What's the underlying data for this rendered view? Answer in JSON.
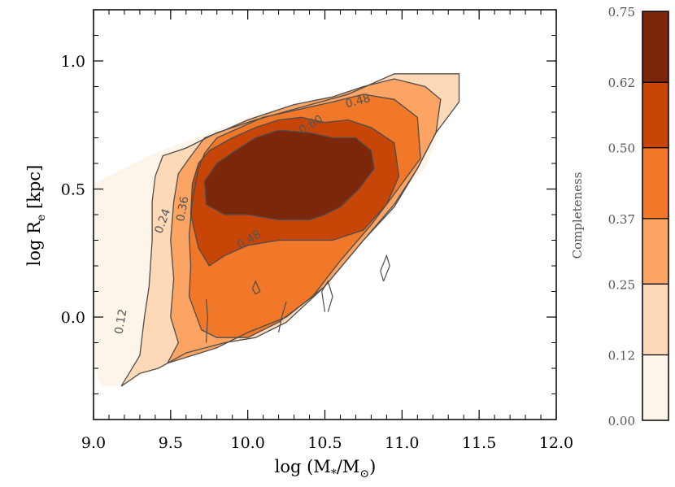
{
  "chart_data": {
    "type": "contour",
    "xlabel": "log (M*/M⊙)",
    "ylabel": "log Re [kpc]",
    "xlim": [
      9.0,
      12.0
    ],
    "ylim": [
      -0.4,
      1.2
    ],
    "xticks": [
      "9.0",
      "9.5",
      "10.0",
      "10.5",
      "11.0",
      "11.5",
      "12.0"
    ],
    "xtick_values": [
      9.0,
      9.5,
      10.0,
      10.5,
      11.0,
      11.5,
      12.0
    ],
    "yticks": [
      "0.0",
      "0.5",
      "1.0"
    ],
    "ytick_values": [
      0.0,
      0.5,
      1.0
    ],
    "colorbar": {
      "label": "Completeness",
      "range": [
        0.0,
        0.75
      ],
      "level_labels": [
        "0.00",
        "0.12",
        "0.25",
        "0.37",
        "0.50",
        "0.62",
        "0.75"
      ],
      "level_values": [
        0.0,
        0.12,
        0.25,
        0.37,
        0.5,
        0.62,
        0.75
      ],
      "colors": [
        "#fdf4ea",
        "#fdd9b8",
        "#fca463",
        "#f07828",
        "#c84508",
        "#7c2709"
      ]
    },
    "contour_labels": [
      {
        "text": "0.12",
        "x": 9.2,
        "y": -0.02,
        "angle": -80
      },
      {
        "text": "0.24",
        "x": 9.47,
        "y": 0.37,
        "angle": -70
      },
      {
        "text": "0.36",
        "x": 9.6,
        "y": 0.42,
        "angle": -80
      },
      {
        "text": "0.48",
        "x": 10.02,
        "y": 0.29,
        "angle": -30
      },
      {
        "text": "0.48",
        "x": 10.72,
        "y": 0.83,
        "angle": -15
      },
      {
        "text": "0.60",
        "x": 10.42,
        "y": 0.74,
        "angle": -30
      }
    ],
    "regions": [
      {
        "level": 0,
        "points": [
          [
            9.0,
            -0.18
          ],
          [
            9.0,
            0.52
          ],
          [
            9.4,
            0.64
          ],
          [
            9.75,
            0.72
          ],
          [
            10.05,
            0.79
          ],
          [
            10.3,
            0.82
          ],
          [
            10.6,
            0.87
          ],
          [
            10.95,
            0.95
          ],
          [
            11.37,
            0.95
          ],
          [
            11.37,
            0.84
          ],
          [
            11.25,
            0.74
          ],
          [
            11.15,
            0.58
          ],
          [
            10.95,
            0.47
          ],
          [
            10.75,
            0.32
          ],
          [
            10.55,
            0.17
          ],
          [
            10.3,
            0.02
          ],
          [
            10.0,
            -0.06
          ],
          [
            9.7,
            -0.12
          ],
          [
            9.5,
            -0.18
          ],
          [
            9.3,
            -0.23
          ],
          [
            9.15,
            -0.27
          ],
          [
            9.05,
            -0.27
          ]
        ]
      },
      {
        "level": 1,
        "points": [
          [
            9.18,
            -0.27
          ],
          [
            9.3,
            -0.22
          ],
          [
            9.42,
            -0.2
          ],
          [
            9.6,
            -0.14
          ],
          [
            9.85,
            -0.1
          ],
          [
            10.05,
            -0.08
          ],
          [
            10.25,
            -0.02
          ],
          [
            10.5,
            0.12
          ],
          [
            10.75,
            0.3
          ],
          [
            10.95,
            0.43
          ],
          [
            11.1,
            0.58
          ],
          [
            11.22,
            0.72
          ],
          [
            11.37,
            0.84
          ],
          [
            11.37,
            0.95
          ],
          [
            10.95,
            0.95
          ],
          [
            10.65,
            0.87
          ],
          [
            10.35,
            0.82
          ],
          [
            10.05,
            0.77
          ],
          [
            9.8,
            0.72
          ],
          [
            9.6,
            0.66
          ],
          [
            9.45,
            0.63
          ],
          [
            9.4,
            0.55
          ],
          [
            9.38,
            0.45
          ],
          [
            9.38,
            0.3
          ],
          [
            9.36,
            0.12
          ],
          [
            9.33,
            0.0
          ],
          [
            9.3,
            -0.15
          ]
        ]
      },
      {
        "level": 2,
        "points": [
          [
            9.48,
            -0.18
          ],
          [
            9.55,
            -0.1
          ],
          [
            9.5,
            0.0
          ],
          [
            9.52,
            0.15
          ],
          [
            9.5,
            0.3
          ],
          [
            9.52,
            0.45
          ],
          [
            9.55,
            0.56
          ],
          [
            9.62,
            0.62
          ],
          [
            9.72,
            0.7
          ],
          [
            9.85,
            0.73
          ],
          [
            10.0,
            0.77
          ],
          [
            10.15,
            0.8
          ],
          [
            10.3,
            0.83
          ],
          [
            10.55,
            0.86
          ],
          [
            10.75,
            0.9
          ],
          [
            10.95,
            0.93
          ],
          [
            11.15,
            0.9
          ],
          [
            11.25,
            0.85
          ],
          [
            11.22,
            0.72
          ],
          [
            11.1,
            0.58
          ],
          [
            10.95,
            0.44
          ],
          [
            10.75,
            0.3
          ],
          [
            10.5,
            0.12
          ],
          [
            10.25,
            0.0
          ],
          [
            10.0,
            -0.06
          ],
          [
            9.8,
            -0.12
          ]
        ]
      },
      {
        "level": 3,
        "points": [
          [
            9.7,
            -0.05
          ],
          [
            9.62,
            0.08
          ],
          [
            9.63,
            0.2
          ],
          [
            9.62,
            0.32
          ],
          [
            9.64,
            0.45
          ],
          [
            9.68,
            0.58
          ],
          [
            9.72,
            0.64
          ],
          [
            9.8,
            0.7
          ],
          [
            9.95,
            0.74
          ],
          [
            10.1,
            0.78
          ],
          [
            10.25,
            0.8
          ],
          [
            10.4,
            0.82
          ],
          [
            10.55,
            0.84
          ],
          [
            10.75,
            0.87
          ],
          [
            10.95,
            0.85
          ],
          [
            11.1,
            0.78
          ],
          [
            11.12,
            0.62
          ],
          [
            10.95,
            0.48
          ],
          [
            10.8,
            0.36
          ],
          [
            10.6,
            0.22
          ],
          [
            10.42,
            0.08
          ],
          [
            10.2,
            -0.02
          ],
          [
            10.0,
            -0.08
          ],
          [
            9.8,
            -0.08
          ]
        ]
      },
      {
        "level": 4,
        "points": [
          [
            9.68,
            0.27
          ],
          [
            9.63,
            0.4
          ],
          [
            9.64,
            0.52
          ],
          [
            9.68,
            0.6
          ],
          [
            9.75,
            0.65
          ],
          [
            9.9,
            0.7
          ],
          [
            10.05,
            0.74
          ],
          [
            10.2,
            0.77
          ],
          [
            10.35,
            0.78
          ],
          [
            10.5,
            0.76
          ],
          [
            10.65,
            0.77
          ],
          [
            10.8,
            0.74
          ],
          [
            10.95,
            0.68
          ],
          [
            10.98,
            0.55
          ],
          [
            10.9,
            0.44
          ],
          [
            10.75,
            0.34
          ],
          [
            10.55,
            0.3
          ],
          [
            10.4,
            0.3
          ],
          [
            10.2,
            0.3
          ],
          [
            10.0,
            0.28
          ],
          [
            9.85,
            0.24
          ],
          [
            9.75,
            0.2
          ]
        ]
      },
      {
        "level": 5,
        "points": [
          [
            9.73,
            0.44
          ],
          [
            9.72,
            0.53
          ],
          [
            9.8,
            0.6
          ],
          [
            9.92,
            0.65
          ],
          [
            10.05,
            0.7
          ],
          [
            10.2,
            0.73
          ],
          [
            10.4,
            0.72
          ],
          [
            10.55,
            0.7
          ],
          [
            10.7,
            0.7
          ],
          [
            10.8,
            0.65
          ],
          [
            10.82,
            0.58
          ],
          [
            10.72,
            0.5
          ],
          [
            10.6,
            0.43
          ],
          [
            10.5,
            0.4
          ],
          [
            10.4,
            0.38
          ],
          [
            10.2,
            0.38
          ],
          [
            10.0,
            0.4
          ],
          [
            9.85,
            0.4
          ]
        ]
      }
    ],
    "extra_lines": [
      [
        [
          9.73,
          -0.1
        ],
        [
          9.74,
          0.0
        ],
        [
          9.73,
          0.07
        ]
      ],
      [
        [
          10.2,
          -0.06
        ],
        [
          10.22,
          0.0
        ],
        [
          10.25,
          0.06
        ]
      ],
      [
        [
          10.5,
          0.02
        ],
        [
          10.48,
          0.1
        ],
        [
          10.52,
          0.14
        ],
        [
          10.55,
          0.08
        ],
        [
          10.52,
          0.02
        ]
      ],
      [
        [
          10.88,
          0.14
        ],
        [
          10.92,
          0.2
        ],
        [
          10.9,
          0.24
        ],
        [
          10.86,
          0.18
        ],
        [
          10.88,
          0.14
        ]
      ],
      [
        [
          10.03,
          0.11
        ],
        [
          10.05,
          0.14
        ],
        [
          10.08,
          0.1
        ],
        [
          10.05,
          0.09
        ],
        [
          10.03,
          0.11
        ]
      ]
    ]
  }
}
